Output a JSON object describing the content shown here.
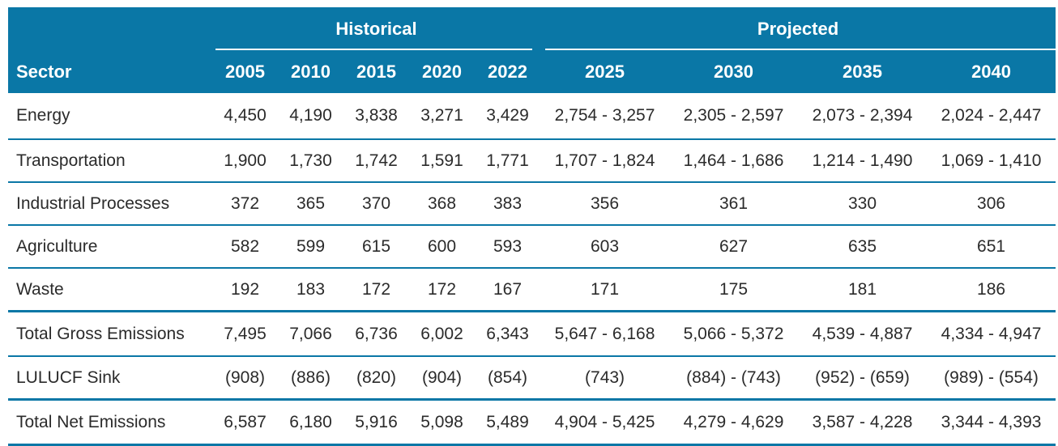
{
  "header": {
    "group_historical": "Historical",
    "group_projected": "Projected",
    "sector_label": "Sector",
    "years": [
      "2005",
      "2010",
      "2015",
      "2020",
      "2022",
      "2025",
      "2030",
      "2035",
      "2040"
    ]
  },
  "rows": [
    {
      "label": "Energy",
      "values": [
        "4,450",
        "4,190",
        "3,838",
        "3,271",
        "3,429",
        "2,754 - 3,257",
        "2,305 - 2,597",
        "2,073 - 2,394",
        "2,024 - 2,447"
      ]
    },
    {
      "label": "Transportation",
      "values": [
        "1,900",
        "1,730",
        "1,742",
        "1,591",
        "1,771",
        "1,707 - 1,824",
        "1,464 - 1,686",
        "1,214 - 1,490",
        "1,069 - 1,410"
      ]
    },
    {
      "label": "Industrial Processes",
      "values": [
        "372",
        "365",
        "370",
        "368",
        "383",
        "356",
        "361",
        "330",
        "306"
      ]
    },
    {
      "label": "Agriculture",
      "values": [
        "582",
        "599",
        "615",
        "600",
        "593",
        "603",
        "627",
        "635",
        "651"
      ]
    },
    {
      "label": "Waste",
      "values": [
        "192",
        "183",
        "172",
        "172",
        "167",
        "171",
        "175",
        "181",
        "186"
      ]
    },
    {
      "label": "Total Gross Emissions",
      "values": [
        "7,495",
        "7,066",
        "6,736",
        "6,002",
        "6,343",
        "5,647 - 6,168",
        "5,066 - 5,372",
        "4,539 - 4,887",
        "4,334 - 4,947"
      ]
    },
    {
      "label": "LULUCF Sink",
      "values": [
        "(908)",
        "(886)",
        "(820)",
        "(904)",
        "(854)",
        "(743)",
        "(884) - (743)",
        "(952) - (659)",
        "(989) - (554)"
      ]
    },
    {
      "label": "Total Net Emissions",
      "values": [
        "6,587",
        "6,180",
        "5,916",
        "5,098",
        "5,489",
        "4,904 - 5,425",
        "4,279 - 4,629",
        "3,587 - 4,228",
        "3,344 - 4,393"
      ]
    }
  ],
  "colors": {
    "header_bg": "#0a77a6",
    "header_text": "#ffffff",
    "rule": "#0a77a6"
  }
}
